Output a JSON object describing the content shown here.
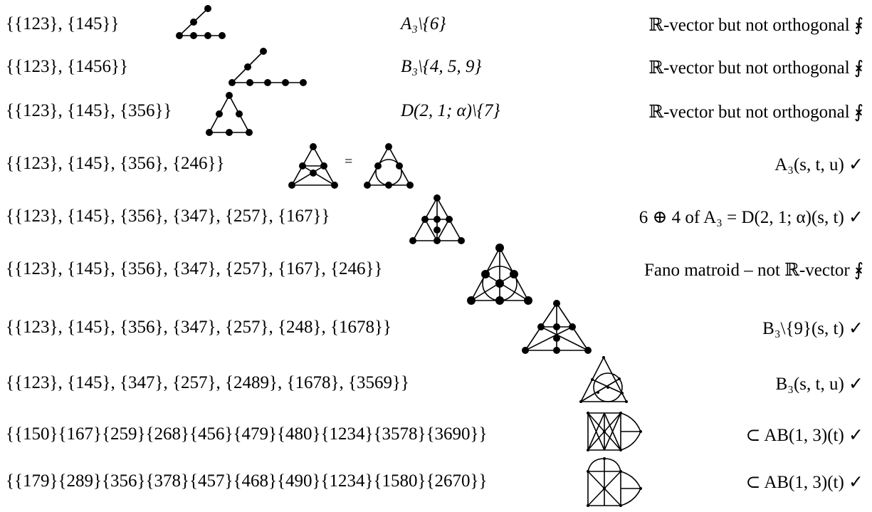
{
  "rows": [
    {
      "sets": "{{123}, {145}}",
      "mid": "A₃\\{6}",
      "right": "ℝ-vector but not orthogonal ⨘"
    },
    {
      "sets": "{{123}, {1456}}",
      "mid": "B₃\\{4, 5, 9}",
      "right": "ℝ-vector but not orthogonal ⨘"
    },
    {
      "sets": "{{123}, {145}, {356}}",
      "mid": "D(2, 1; α)\\{7}",
      "right": "ℝ-vector but not orthogonal ⨘"
    },
    {
      "sets": "{{123}, {145}, {356}, {246}}",
      "eq": "=",
      "right": "A₃(s, t, u) ✓"
    },
    {
      "sets": "{{123}, {145}, {356}, {347}, {257}, {167}}",
      "right": "6 ⊕ 4 of A₃  =  D(2, 1; α)(s, t) ✓"
    },
    {
      "sets": "{{123}, {145}, {356}, {347}, {257}, {167}, {246}}",
      "right": "Fano matroid – not ℝ-vector ⨘"
    },
    {
      "sets": "{{123}, {145}, {356}, {347}, {257}, {248}, {1678}}",
      "right": "B₃\\{9}(s, t) ✓"
    },
    {
      "sets": "{{123}, {145}, {347}, {257}, {2489}, {1678}, {3569}}",
      "right": "B₃(s, t, u) ✓"
    },
    {
      "sets": "{{150}{167}{259}{268}{456}{479}{480}{1234}{3578}{3690}}",
      "right": "⊂ AB(1, 3)(t) ✓"
    },
    {
      "sets": "{{179}{289}{356}{378}{457}{468}{490}{1234}{1580}{2670}}",
      "right": "⊂ AB(1, 3)(t) ✓"
    }
  ]
}
